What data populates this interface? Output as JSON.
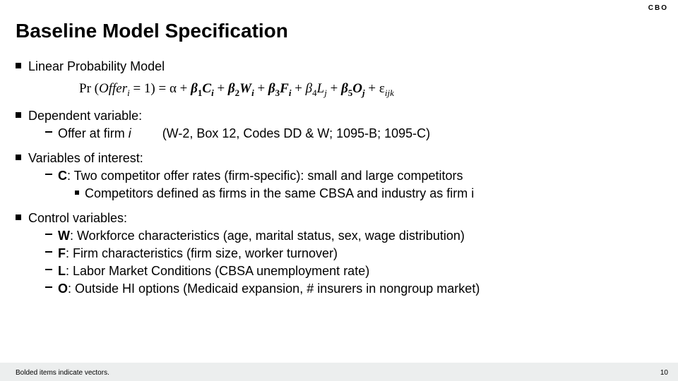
{
  "tag": "CBO",
  "title": "Baseline Model Specification",
  "bullet1": "Linear Probability Model",
  "equation": {
    "lhs": "Pr (",
    "offer": "Offer",
    "offer_sub": "i",
    "eq1": " = 1) = α + ",
    "b1": "β",
    "b1n": "1",
    "c": "C",
    "csub": "i",
    "plus1": " + ",
    "b2": "β",
    "b2n": "2",
    "w": "W",
    "wsub": "i",
    "plus2": " + ",
    "b3": "β",
    "b3n": "3",
    "f": "F",
    "fsub": "i",
    "plus3": "  + ",
    "b4_beta": "β",
    "b4n": "4",
    "l": "L",
    "lsub": "j",
    "plus4": " + ",
    "b5": "β",
    "b5n": "5",
    "o": "O",
    "osub": "j",
    "plus5": " + ε",
    "eps_sub": "ijk"
  },
  "bullet2": "Dependent variable:",
  "sub2a_pre": "Offer at firm ",
  "sub2a_i": "i",
  "sub2a_src": "(W-2, Box 12, Codes DD & W; 1095-B; 1095-C)",
  "bullet3": "Variables of interest:",
  "sub3a_bold": "C",
  "sub3a_rest": ": Two competitor offer rates (firm-specific): small and large competitors",
  "sub3b": "Competitors defined  as firms in the same CBSA and industry as firm i",
  "bullet4": "Control variables:",
  "sub4a_bold": "W",
  "sub4a_rest": ": Workforce characteristics (age, marital status, sex, wage distribution)",
  "sub4b_bold": "F",
  "sub4b_rest": ": Firm characteristics (firm size, worker turnover)",
  "sub4c_bold": "L",
  "sub4c_rest": ": Labor Market Conditions (CBSA unemployment rate)",
  "sub4d_bold": "O",
  "sub4d_rest": ": Outside HI options (Medicaid expansion, # insurers in nongroup market)",
  "footnote": "Bolded items indicate vectors.",
  "pagenum": "10"
}
